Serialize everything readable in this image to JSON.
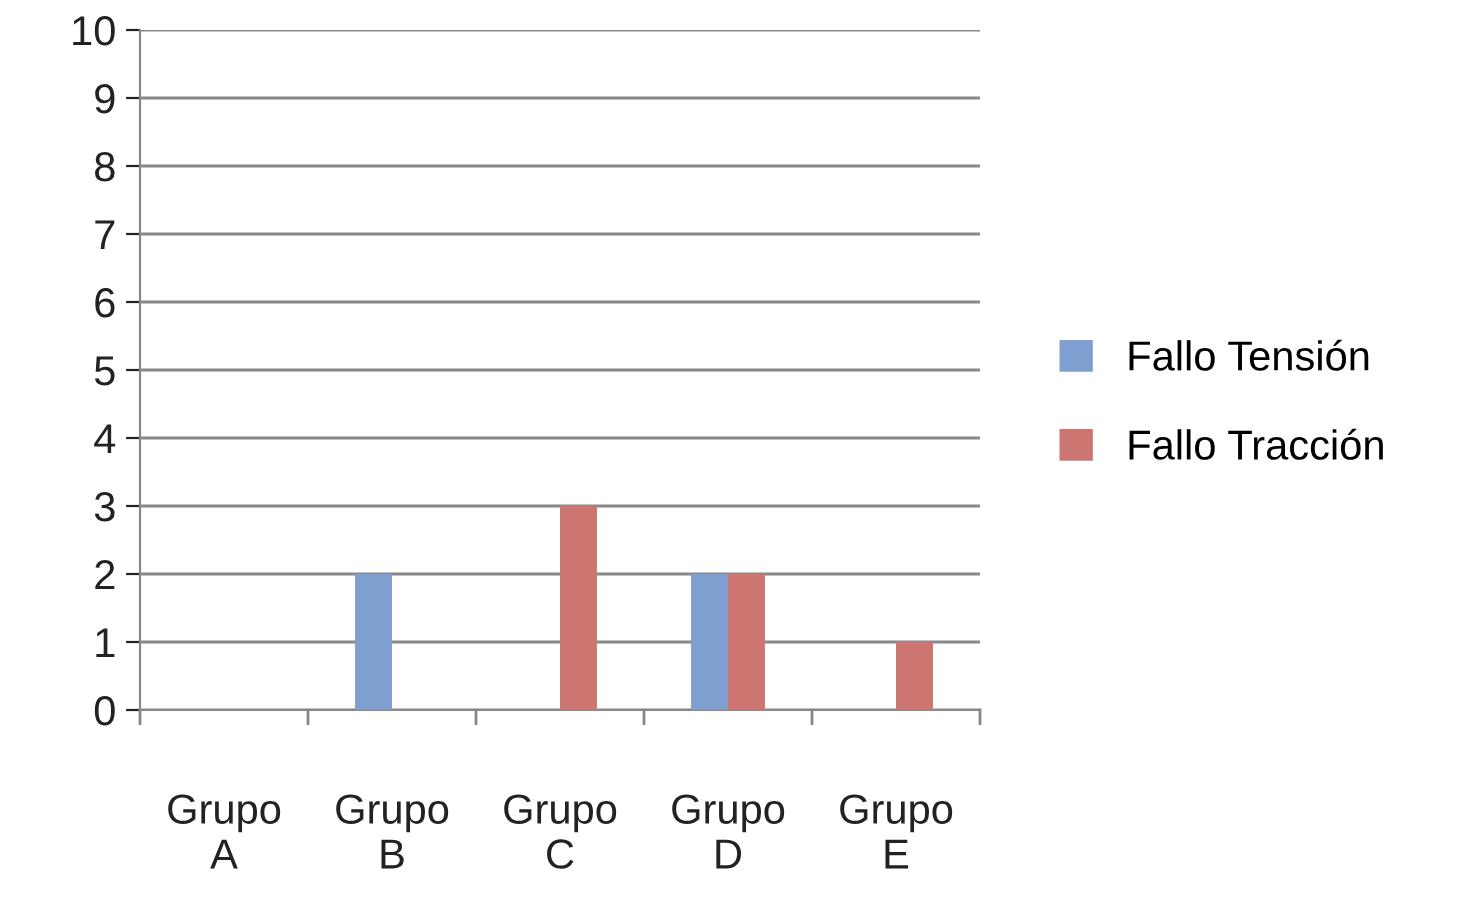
{
  "chart_data": {
    "type": "bar",
    "categories": [
      "Grupo\nA",
      "Grupo\nB",
      "Grupo\nC",
      "Grupo\nD",
      "Grupo\nE"
    ],
    "series": [
      {
        "name": "Fallo Tensión",
        "color": "#7f9fd0",
        "values": [
          0,
          2,
          0,
          2,
          0
        ]
      },
      {
        "name": "Fallo Tracción",
        "color": "#cd7570",
        "values": [
          0,
          0,
          3,
          2,
          1
        ]
      }
    ],
    "ylim": [
      0,
      10
    ],
    "yticks": [
      0,
      1,
      2,
      3,
      4,
      5,
      6,
      7,
      8,
      9,
      10
    ],
    "grid": "y",
    "legend": "right"
  }
}
